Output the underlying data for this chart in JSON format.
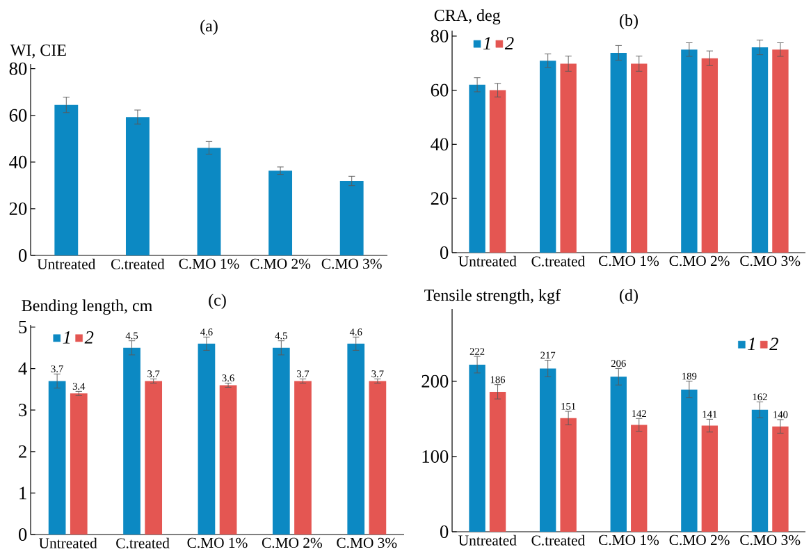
{
  "chart_data": [
    {
      "type": "bar",
      "title": "(a)",
      "ylabel": "WI, CIE",
      "categories": [
        "Untreated",
        "C.treated",
        "C.MO 1%",
        "C.MO 2%",
        "C.MO 3%"
      ],
      "series": [
        {
          "color": "#0c89c3",
          "values": [
            64.5,
            59.3,
            46.1,
            36.3,
            31.9
          ],
          "errors": [
            3.3,
            3,
            2.7,
            1.6,
            2
          ]
        }
      ],
      "ylim": [
        0,
        82
      ],
      "yticks": [
        0,
        20,
        40,
        60,
        80
      ]
    },
    {
      "type": "bar",
      "title": "(b)",
      "ylabel": "CRA, deg",
      "categories": [
        "Untreated",
        "C.treated",
        "C.MO 1%",
        "C.MO 2%",
        "C.MO 3%"
      ],
      "series": [
        {
          "name": "1",
          "color": "#0c89c3",
          "values": [
            62,
            70.9,
            73.8,
            75,
            75.8
          ],
          "errors": [
            2.6,
            2.5,
            2.7,
            2.5,
            2.7
          ]
        },
        {
          "name": "2",
          "color": "#e45652",
          "values": [
            60,
            69.8,
            69.8,
            71.8,
            75
          ],
          "errors": [
            2.5,
            2.8,
            2.8,
            2.7,
            2.5
          ]
        }
      ],
      "ylim": [
        0,
        82
      ],
      "yticks": [
        0,
        20,
        40,
        60,
        80
      ],
      "legend": "top left"
    },
    {
      "type": "bar",
      "title": "(c)",
      "ylabel": "Bending length, cm",
      "categories": [
        "Untreated",
        "C.treated",
        "C.MO 1%",
        "C.MO 2%",
        "C.MO 3%"
      ],
      "series": [
        {
          "name": "1",
          "color": "#0c89c3",
          "values": [
            3.7,
            4.5,
            4.6,
            4.5,
            4.6
          ],
          "errors": [
            0.17,
            0.17,
            0.16,
            0.17,
            0.16
          ]
        },
        {
          "name": "2",
          "color": "#e45652",
          "values": [
            3.4,
            3.7,
            3.6,
            3.7,
            3.7
          ],
          "errors": [
            0.05,
            0.05,
            0.05,
            0.05,
            0.05
          ]
        }
      ],
      "ylim": [
        0,
        5.05
      ],
      "yticks": [
        0,
        1,
        2,
        3,
        4,
        5
      ],
      "legend": "top left",
      "data_labels": true
    },
    {
      "type": "bar",
      "title": "(d)",
      "ylabel": "Tensile strength, kgf",
      "categories": [
        "Untreated",
        "C.treated",
        "C.MO 1%",
        "C.MO 2%",
        "C.MO 3%"
      ],
      "series": [
        {
          "name": "1",
          "color": "#0c89c3",
          "values": [
            222,
            217,
            206,
            189,
            162
          ],
          "errors": [
            11,
            11,
            11,
            11,
            10.5
          ]
        },
        {
          "name": "2",
          "color": "#e45652",
          "values": [
            186,
            151,
            142,
            141,
            140
          ],
          "errors": [
            9.5,
            9,
            8.5,
            8.5,
            9
          ]
        }
      ],
      "ylim": [
        0,
        296
      ],
      "yticks": [
        0,
        100,
        200
      ],
      "legend": "top right",
      "data_labels": true
    }
  ]
}
